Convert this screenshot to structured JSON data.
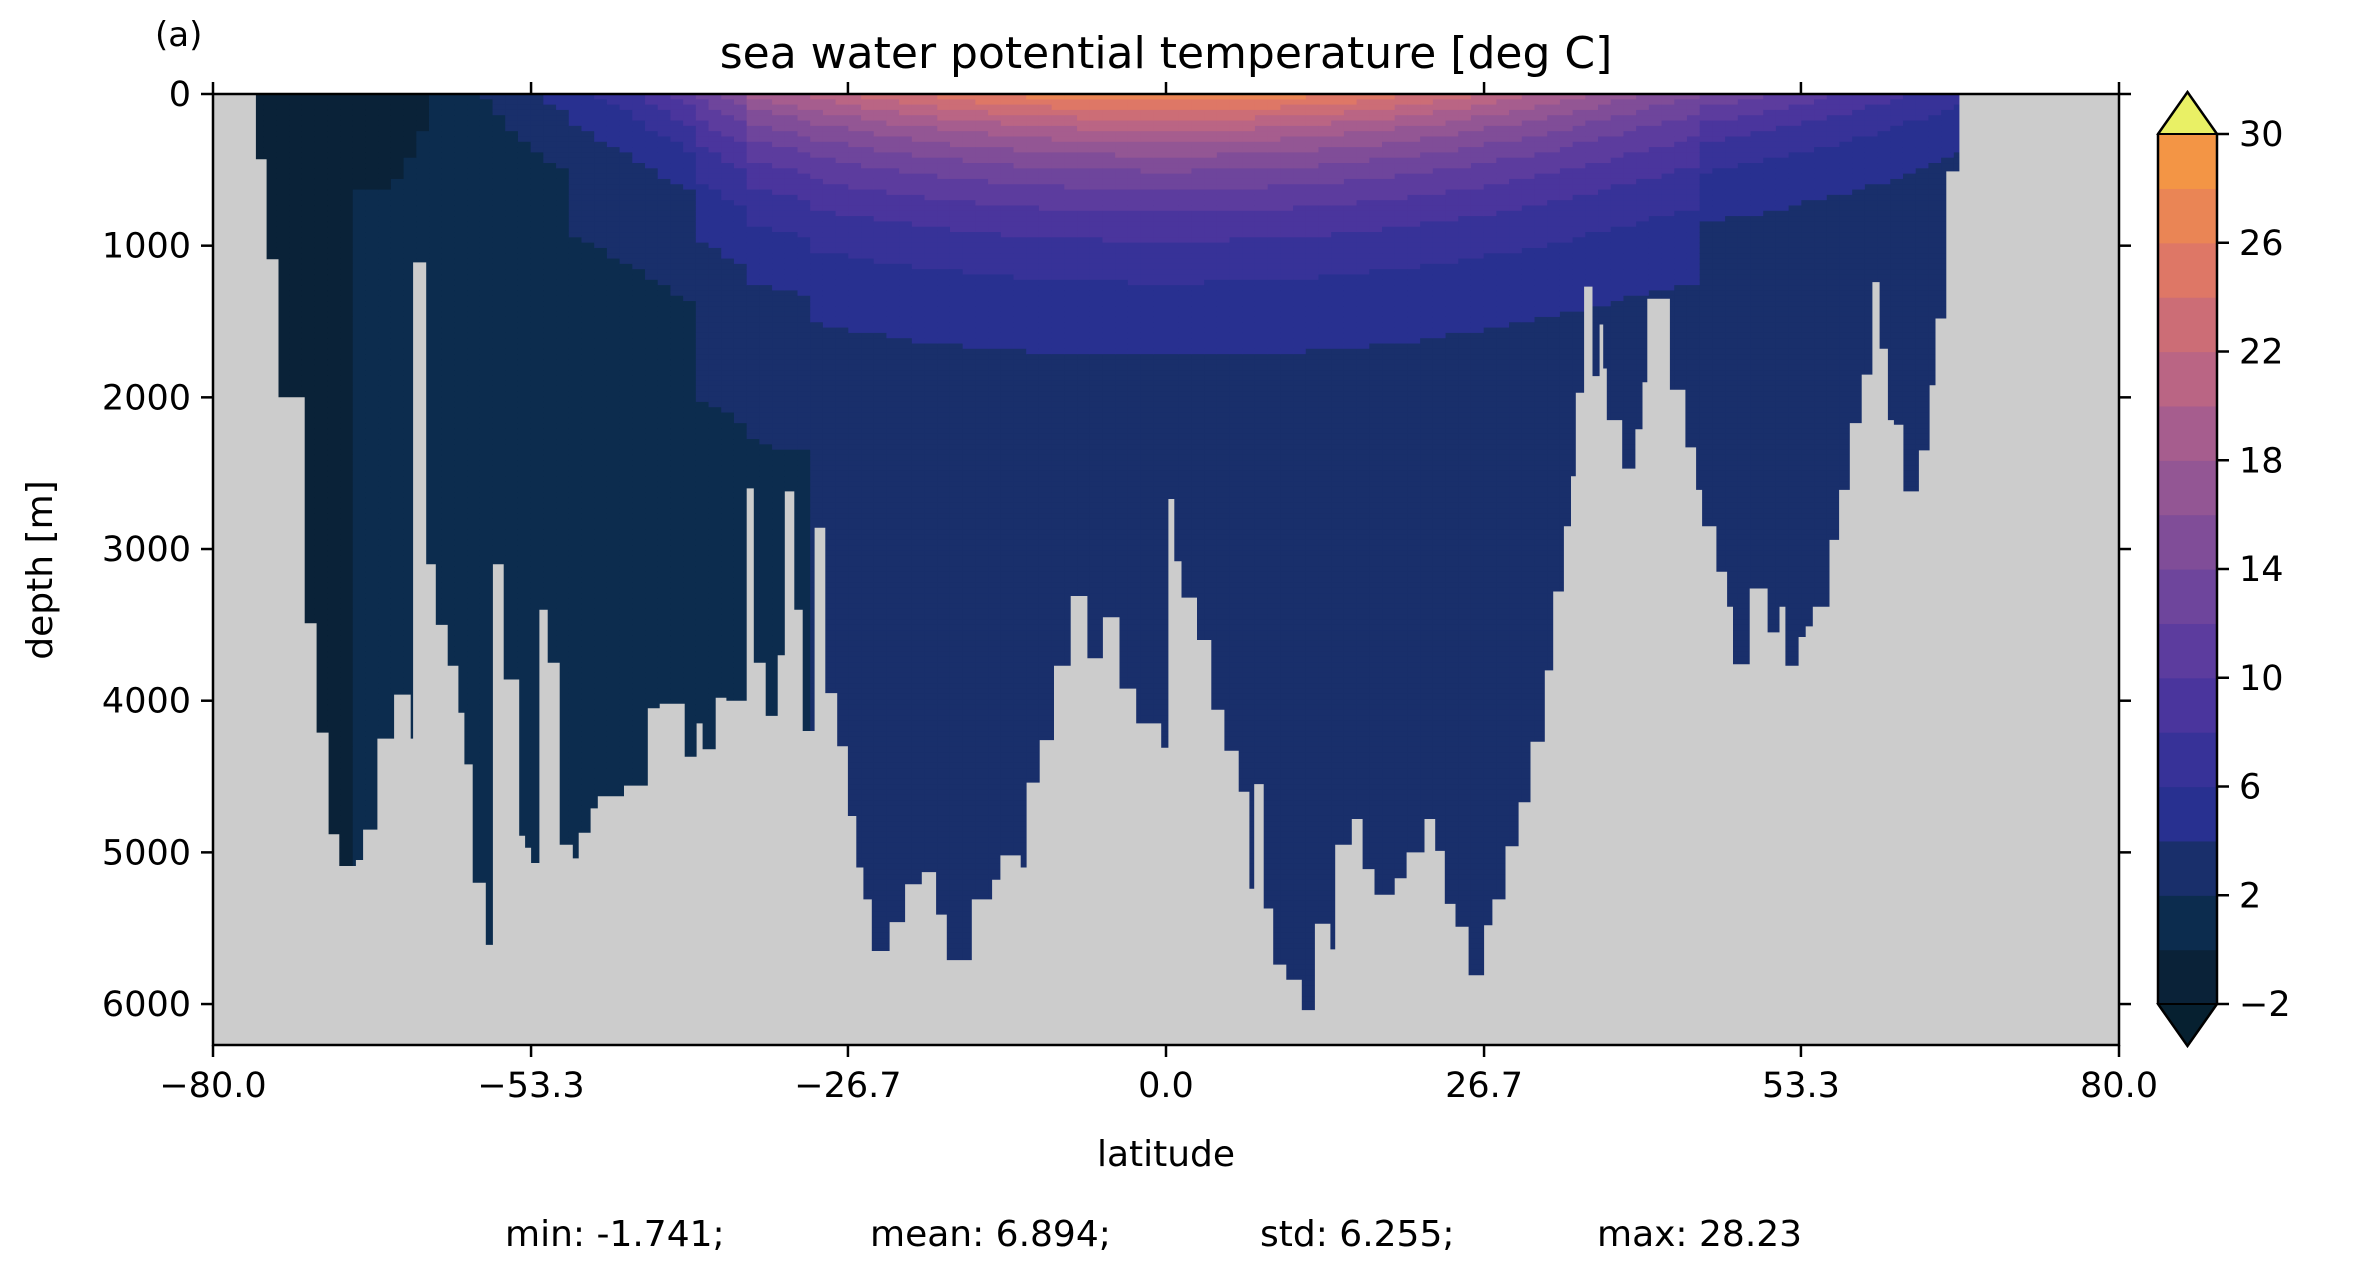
{
  "panel_label": "(a)",
  "stats": {
    "min": "min: -1.741;",
    "mean": "mean: 6.894;",
    "std": "std: 6.255;",
    "max": "max: 28.23"
  },
  "colors": {
    "land": "#cccccc",
    "colormap": [
      "#0a2238",
      "#0c2c4e",
      "#192f6b",
      "#283090",
      "#373298",
      "#4a359d",
      "#5c3c9e",
      "#6e459c",
      "#804d98",
      "#935694",
      "#a65d8e",
      "#ba6584",
      "#cc6d76",
      "#de7766",
      "#ea8555",
      "#f39545",
      "#f6a93e",
      "#f6c141",
      "#f3d74c",
      "#ede25a",
      "#e9f065"
    ],
    "under": "#062030",
    "over": "#e9f065"
  },
  "chart_data": {
    "type": "heatmap",
    "title": "sea water potential temperature [deg C]",
    "xlabel": "latitude",
    "ylabel": "depth [m]",
    "xlim": [
      -80.0,
      80.0
    ],
    "ylim": [
      6270,
      0
    ],
    "xticks": [
      "−80.0",
      "−53.3",
      "−26.7",
      "0.0",
      "26.7",
      "53.3",
      "80.0"
    ],
    "xtick_values": [
      -80.0,
      -53.3,
      -26.7,
      0.0,
      26.7,
      53.3,
      80.0
    ],
    "yticks": [
      "0",
      "1000",
      "2000",
      "3000",
      "4000",
      "5000",
      "6000"
    ],
    "ytick_values": [
      0,
      1000,
      2000,
      3000,
      4000,
      5000,
      6000
    ],
    "colorbar": {
      "label_values": [
        -2,
        2,
        6,
        10,
        14,
        18,
        22,
        26,
        30
      ],
      "labels": [
        "−2",
        "2",
        "6",
        "10",
        "14",
        "18",
        "22",
        "26",
        "30"
      ],
      "min": -2,
      "max": 30,
      "step": 2,
      "extend": "both"
    },
    "grid": false,
    "bottom_depth_profile": {
      "lat": [
        -80,
        -76.4,
        -75.5,
        -74.5,
        -72.3,
        -71.3,
        -70.3,
        -69.4,
        -68,
        -67.4,
        -66.2,
        -64.8,
        -63.4,
        -63.2,
        -62.1,
        -61.3,
        -60.3,
        -59.4,
        -58.9,
        -58.2,
        -57.1,
        -56.5,
        -55.6,
        -54.3,
        -53.8,
        -53.3,
        -52.6,
        -51.9,
        -50.9,
        -49.8,
        -49.3,
        -48.3,
        -47.7,
        -45.5,
        -43.5,
        -42.5,
        -40.4,
        -39.4,
        -38.9,
        -37.8,
        -36.9,
        -35.2,
        -34.6,
        -33.6,
        -32.6,
        -32.0,
        -31.2,
        -30.5,
        -29.5,
        -28.6,
        -27.6,
        -26.7,
        -26.0,
        -25.4,
        -24.7,
        -23.2,
        -21.9,
        -20.5,
        -19.3,
        -18.4,
        -16.3,
        -14.6,
        -13.9,
        -12.2,
        -11.7,
        -10.6,
        -9.4,
        -8.0,
        -6.6,
        -5.3,
        -3.9,
        -2.5,
        -0.4,
        0.2,
        0.7,
        1.3,
        2.6,
        3.8,
        4.9,
        6.1,
        7.0,
        7.4,
        8.2,
        9.0,
        10.1,
        11.4,
        12.5,
        13.8,
        14.2,
        15.6,
        16.5,
        17.5,
        19.2,
        20.2,
        21.7,
        22.6,
        23.4,
        24.3,
        25.4,
        26.7,
        27.4,
        28.5,
        29.6,
        30.6,
        31.8,
        32.5,
        33.4,
        34.0,
        34.4,
        35.1,
        35.8,
        36.4,
        36.7,
        37.0,
        38.3,
        39.4,
        40.0,
        40.4,
        42.3,
        43.6,
        44.5,
        45.0,
        46.2,
        47.1,
        47.6,
        49.0,
        50.5,
        51.5,
        52.0,
        53.1,
        53.7,
        54.3,
        55.7,
        56.5,
        57.4,
        58.4,
        59.3,
        59.9,
        60.6,
        61.1,
        61.9,
        63.2,
        64.1,
        64.6,
        65.5,
        66.6,
        80
      ],
      "depth": [
        0,
        430,
        1090,
        2000,
        3490,
        4210,
        4880,
        5090,
        5050,
        4850,
        4250,
        3960,
        4250,
        1110,
        3100,
        3500,
        3770,
        4080,
        4420,
        5200,
        5610,
        3100,
        3860,
        4890,
        4970,
        5070,
        3400,
        3750,
        4950,
        5040,
        4870,
        4710,
        4630,
        4560,
        4050,
        4020,
        4370,
        4150,
        4320,
        3980,
        4000,
        2600,
        3750,
        4100,
        3700,
        2620,
        3400,
        4200,
        2860,
        3950,
        4300,
        4760,
        5100,
        5310,
        5650,
        5460,
        5210,
        5130,
        5410,
        5710,
        5310,
        5180,
        5020,
        5100,
        4540,
        4260,
        3770,
        3310,
        3720,
        3450,
        3920,
        4150,
        4310,
        2670,
        3080,
        3320,
        3600,
        4060,
        4330,
        4600,
        5240,
        4550,
        5370,
        5740,
        5840,
        6040,
        5470,
        5640,
        4950,
        4780,
        5110,
        5280,
        5170,
        5000,
        4780,
        4990,
        5340,
        5490,
        5810,
        5480,
        5310,
        4960,
        4670,
        4270,
        3800,
        3280,
        2850,
        2520,
        1970,
        1270,
        1860,
        1520,
        1810,
        2150,
        2470,
        2210,
        1900,
        1350,
        1950,
        2330,
        2610,
        2850,
        3150,
        3380,
        3760,
        3260,
        3550,
        3380,
        3770,
        3580,
        3510,
        3380,
        2940,
        2610,
        2170,
        1850,
        1240,
        1680,
        2150,
        2180,
        2620,
        2350,
        1920,
        1480,
        510,
        0,
        0
      ]
    },
    "temperature_contours_description": {
      "level_step": 2,
      "max_values": [
        28.23
      ],
      "min_values": [
        -1.741
      ]
    }
  }
}
